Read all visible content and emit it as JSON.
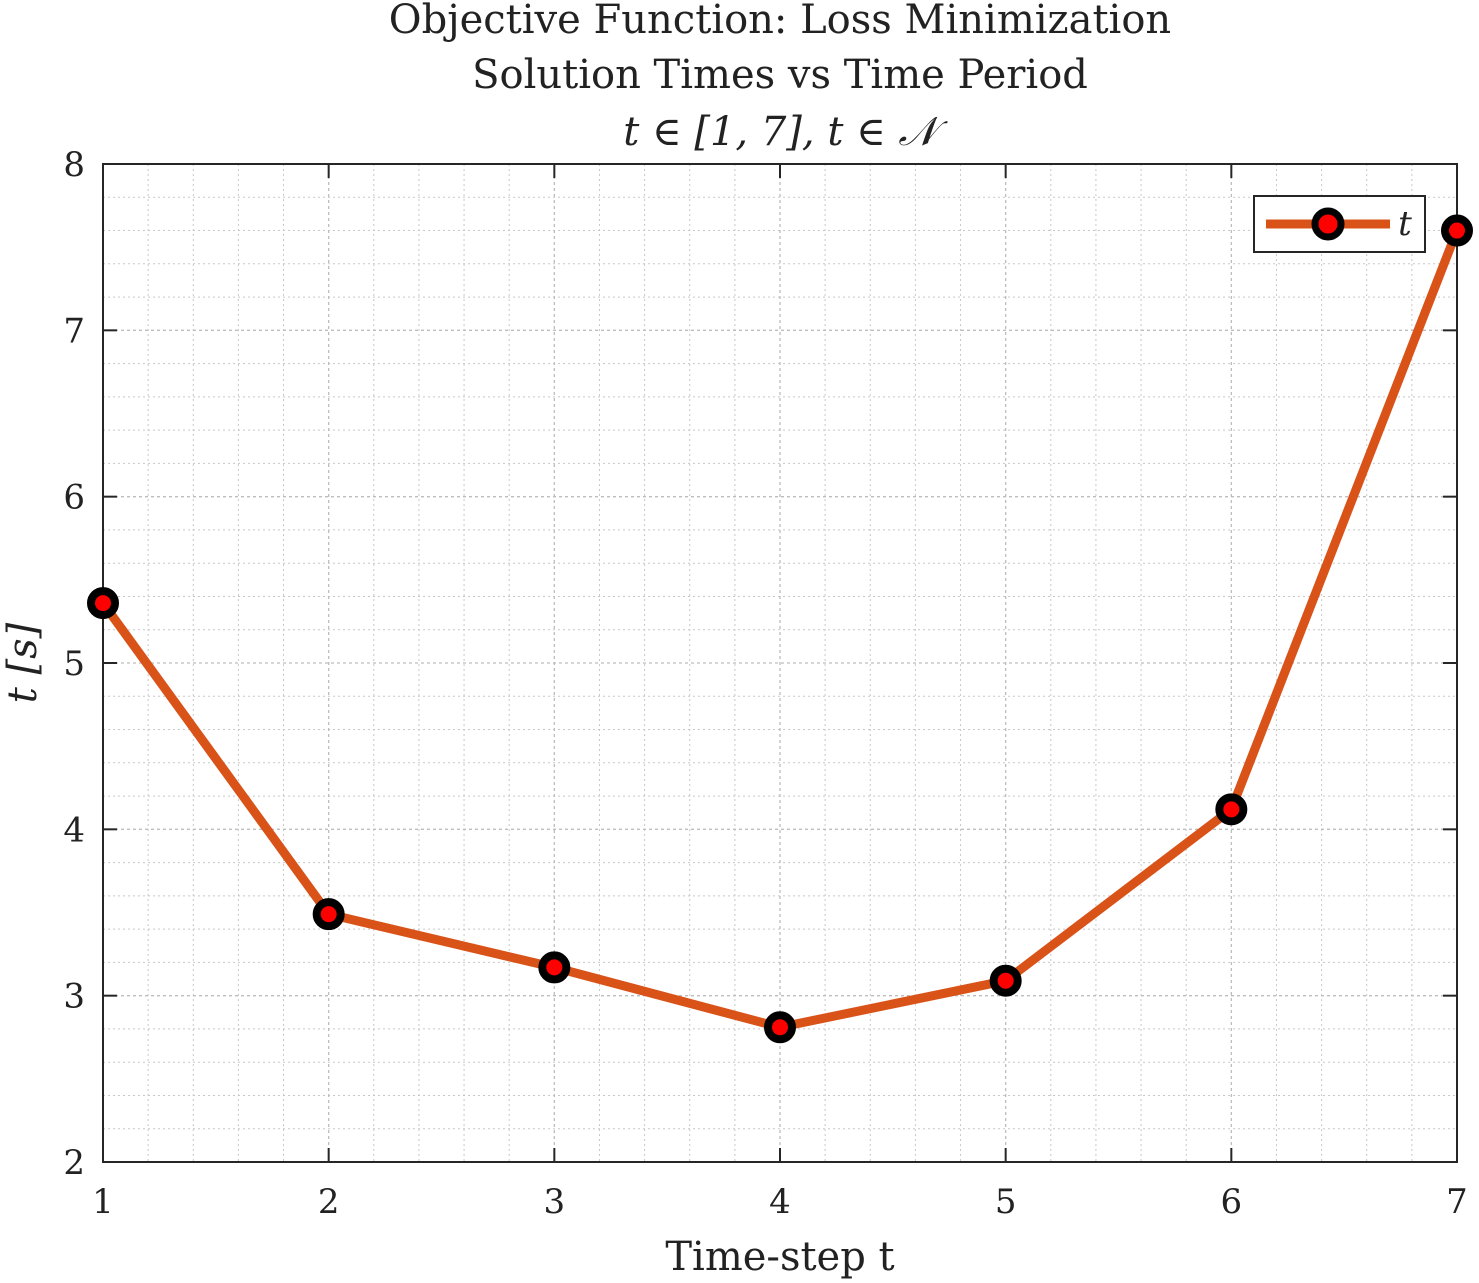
{
  "chart_data": {
    "type": "line",
    "title_lines": [
      "Objective Function: Loss Minimization",
      "Solution Times vs Time Period",
      "t ∈ [1, 7], t ∈ 𝒩"
    ],
    "xlabel": "Time-step t",
    "ylabel": "t [s]",
    "xlim": [
      1,
      7
    ],
    "ylim": [
      2,
      8
    ],
    "xticks": [
      "1",
      "2",
      "3",
      "4",
      "5",
      "6",
      "7"
    ],
    "yticks": [
      "2",
      "3",
      "4",
      "5",
      "6",
      "7",
      "8"
    ],
    "grid": true,
    "minor_grid": true,
    "legend_position": "top-right",
    "series": [
      {
        "name": "t",
        "x": [
          1,
          2,
          3,
          4,
          5,
          6,
          7
        ],
        "values": [
          5.36,
          3.49,
          3.17,
          2.81,
          3.09,
          4.12,
          7.6
        ]
      }
    ],
    "colors": {
      "line": "#d95319",
      "marker_edge": "#000000",
      "marker_face": "#ff0000",
      "grid": "#c8c8c8",
      "axis": "#262626"
    }
  }
}
